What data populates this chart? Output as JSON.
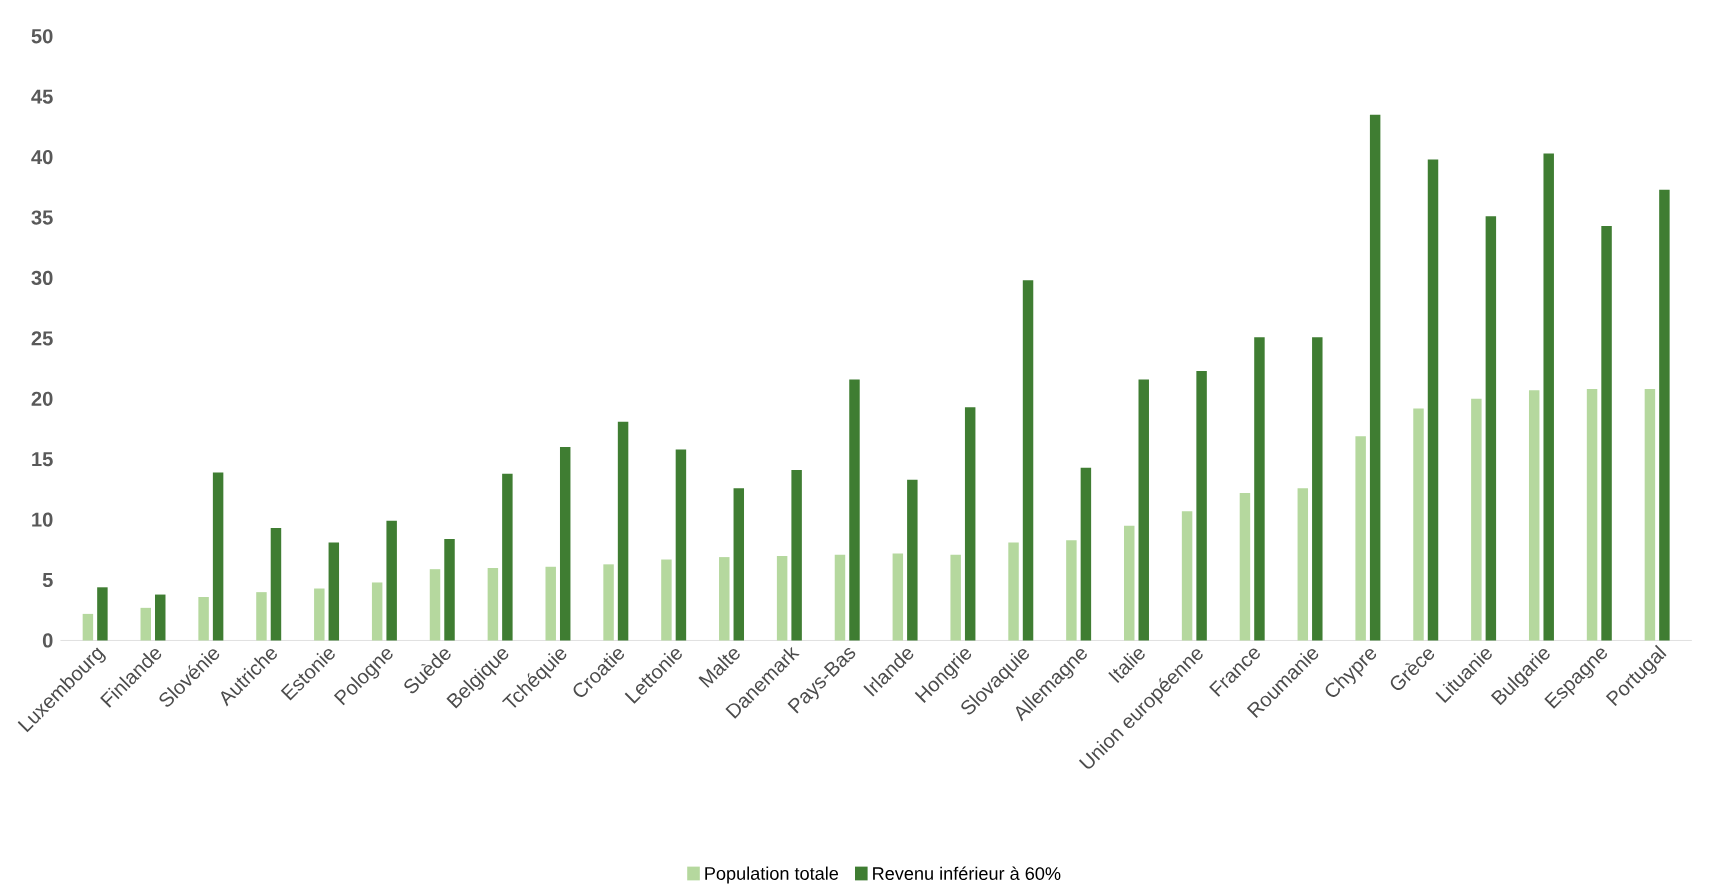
{
  "chart_data": {
    "type": "bar",
    "categories": [
      "Luxembourg",
      "Finlande",
      "Slovénie",
      "Autriche",
      "Estonie",
      "Pologne",
      "Suède",
      "Belgique",
      "Tchéquie",
      "Croatie",
      "Lettonie",
      "Malte",
      "Danemark",
      "Pays-Bas",
      "Irlande",
      "Hongrie",
      "Slovaquie",
      "Allemagne",
      "Italie",
      "Union européenne",
      "France",
      "Roumanie",
      "Chypre",
      "Grèce",
      "Lituanie",
      "Bulgarie",
      "Espagne",
      "Portugal"
    ],
    "series": [
      {
        "name": "Population totale",
        "color": "#b5d89e",
        "values": [
          2.2,
          2.7,
          3.6,
          4.0,
          4.3,
          4.8,
          5.9,
          6.0,
          6.1,
          6.3,
          6.7,
          6.9,
          7.0,
          7.1,
          7.2,
          7.1,
          8.1,
          8.3,
          9.5,
          10.7,
          12.2,
          12.6,
          16.9,
          19.2,
          20.0,
          20.7,
          20.8,
          20.8
        ]
      },
      {
        "name": "Revenu inférieur à 60%",
        "color": "#3f7d32",
        "values": [
          4.4,
          3.8,
          13.9,
          9.3,
          8.1,
          9.9,
          8.4,
          13.8,
          16.0,
          18.1,
          15.8,
          12.6,
          14.1,
          21.6,
          13.3,
          19.3,
          29.8,
          14.3,
          21.6,
          22.3,
          25.1,
          25.1,
          43.5,
          39.8,
          35.1,
          40.3,
          34.3,
          37.3
        ]
      }
    ],
    "ylim": [
      0,
      50
    ],
    "yticks": [
      0,
      5,
      10,
      15,
      20,
      25,
      30,
      35,
      40,
      45,
      50
    ],
    "legend": "bottom"
  }
}
